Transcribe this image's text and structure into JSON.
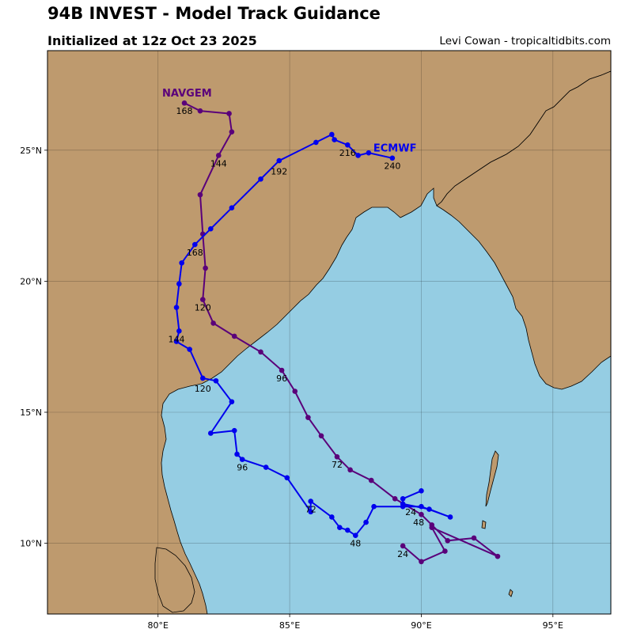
{
  "header": {
    "title": "94B INVEST - Model Track Guidance",
    "subtitle": "Initialized at 12z Oct 23 2025",
    "credit": "Levi Cowan - tropicaltidbits.com"
  },
  "colors": {
    "ocean": "#95cde3",
    "land": "#be9a6e",
    "ecmwf": "#0000ee",
    "navgem": "#5a007a"
  },
  "axes": {
    "lon_range": [
      75.8,
      97.2
    ],
    "lat_range": [
      7.3,
      28.8
    ],
    "x_ticks": [
      {
        "lon": 80,
        "label": "80°E"
      },
      {
        "lon": 85,
        "label": "85°E"
      },
      {
        "lon": 90,
        "label": "90°E"
      },
      {
        "lon": 95,
        "label": "95°E"
      }
    ],
    "y_ticks": [
      {
        "lat": 10,
        "label": "10°N"
      },
      {
        "lat": 15,
        "label": "15°N"
      },
      {
        "lat": 20,
        "label": "20°N"
      },
      {
        "lat": 25,
        "label": "25°N"
      }
    ]
  },
  "chart_data": {
    "type": "line",
    "xlabel": "",
    "ylabel": "",
    "series": [
      {
        "name": "NAVGEM",
        "color": "#5a007a",
        "points": [
          [
            89.3,
            9.9
          ],
          [
            90.0,
            9.3
          ],
          [
            90.9,
            9.7
          ],
          [
            90.4,
            10.6
          ],
          [
            92.9,
            9.5
          ],
          [
            92.0,
            10.2
          ],
          [
            91.0,
            10.1
          ],
          [
            90.4,
            10.7
          ],
          [
            90.0,
            11.1
          ],
          [
            89.0,
            11.7
          ],
          [
            88.1,
            12.4
          ],
          [
            87.3,
            12.8
          ],
          [
            86.8,
            13.3
          ],
          [
            86.2,
            14.1
          ],
          [
            85.7,
            14.8
          ],
          [
            85.2,
            15.8
          ],
          [
            84.7,
            16.6
          ],
          [
            83.9,
            17.3
          ],
          [
            82.9,
            17.9
          ],
          [
            82.1,
            18.4
          ],
          [
            81.7,
            19.3
          ],
          [
            81.8,
            20.5
          ],
          [
            81.7,
            21.8
          ],
          [
            81.6,
            23.3
          ],
          [
            82.3,
            24.8
          ],
          [
            82.8,
            25.7
          ],
          [
            82.7,
            26.4
          ],
          [
            81.6,
            26.5
          ],
          [
            81.0,
            26.8
          ]
        ],
        "labels": [
          {
            "text": "24",
            "lon": 89.3,
            "lat": 9.6
          },
          {
            "text": "72",
            "lon": 86.8,
            "lat": 13.0
          },
          {
            "text": "96",
            "lon": 84.7,
            "lat": 16.3
          },
          {
            "text": "120",
            "lon": 81.7,
            "lat": 19.0
          },
          {
            "text": "144",
            "lon": 82.3,
            "lat": 24.5
          },
          {
            "text": "168",
            "lon": 81.0,
            "lat": 26.5
          }
        ],
        "name_label": {
          "lon": 81.1,
          "lat": 27.2
        }
      },
      {
        "name": "ECMWF",
        "color": "#0000ee",
        "points": [
          [
            90.0,
            12.0
          ],
          [
            89.3,
            11.7
          ],
          [
            89.3,
            11.5
          ],
          [
            90.3,
            11.3
          ],
          [
            91.1,
            11.0
          ],
          [
            90.0,
            11.4
          ],
          [
            89.3,
            11.4
          ],
          [
            88.2,
            11.4
          ],
          [
            87.9,
            10.8
          ],
          [
            87.5,
            10.3
          ],
          [
            87.2,
            10.5
          ],
          [
            86.9,
            10.6
          ],
          [
            86.6,
            11.0
          ],
          [
            85.8,
            11.6
          ],
          [
            85.8,
            11.2
          ],
          [
            84.9,
            12.5
          ],
          [
            84.1,
            12.9
          ],
          [
            83.2,
            13.2
          ],
          [
            83.0,
            13.4
          ],
          [
            82.9,
            14.3
          ],
          [
            82.0,
            14.2
          ],
          [
            82.8,
            15.4
          ],
          [
            82.2,
            16.2
          ],
          [
            81.7,
            16.3
          ],
          [
            81.2,
            17.4
          ],
          [
            80.7,
            17.7
          ],
          [
            80.8,
            18.1
          ],
          [
            80.7,
            19.0
          ],
          [
            80.8,
            19.9
          ],
          [
            80.9,
            20.7
          ],
          [
            81.4,
            21.4
          ],
          [
            82.0,
            22.0
          ],
          [
            82.8,
            22.8
          ],
          [
            83.9,
            23.9
          ],
          [
            84.6,
            24.6
          ],
          [
            86.0,
            25.3
          ],
          [
            86.6,
            25.6
          ],
          [
            86.7,
            25.4
          ],
          [
            87.2,
            25.2
          ],
          [
            87.6,
            24.8
          ],
          [
            88.0,
            24.9
          ],
          [
            88.9,
            24.7
          ]
        ],
        "labels": [
          {
            "text": "24",
            "lon": 89.6,
            "lat": 11.2
          },
          {
            "text": "48",
            "lon": 89.9,
            "lat": 10.8
          },
          {
            "text": "48",
            "lon": 87.5,
            "lat": 10.0
          },
          {
            "text": "72",
            "lon": 85.8,
            "lat": 11.3
          },
          {
            "text": "96",
            "lon": 83.2,
            "lat": 12.9
          },
          {
            "text": "120",
            "lon": 81.7,
            "lat": 15.9
          },
          {
            "text": "144",
            "lon": 80.7,
            "lat": 17.8
          },
          {
            "text": "168",
            "lon": 81.4,
            "lat": 21.1
          },
          {
            "text": "192",
            "lon": 84.6,
            "lat": 24.2
          },
          {
            "text": "216",
            "lon": 87.2,
            "lat": 24.9
          },
          {
            "text": "240",
            "lon": 88.9,
            "lat": 24.4
          }
        ],
        "name_label": {
          "lon": 89.0,
          "lat": 25.1
        }
      }
    ]
  }
}
